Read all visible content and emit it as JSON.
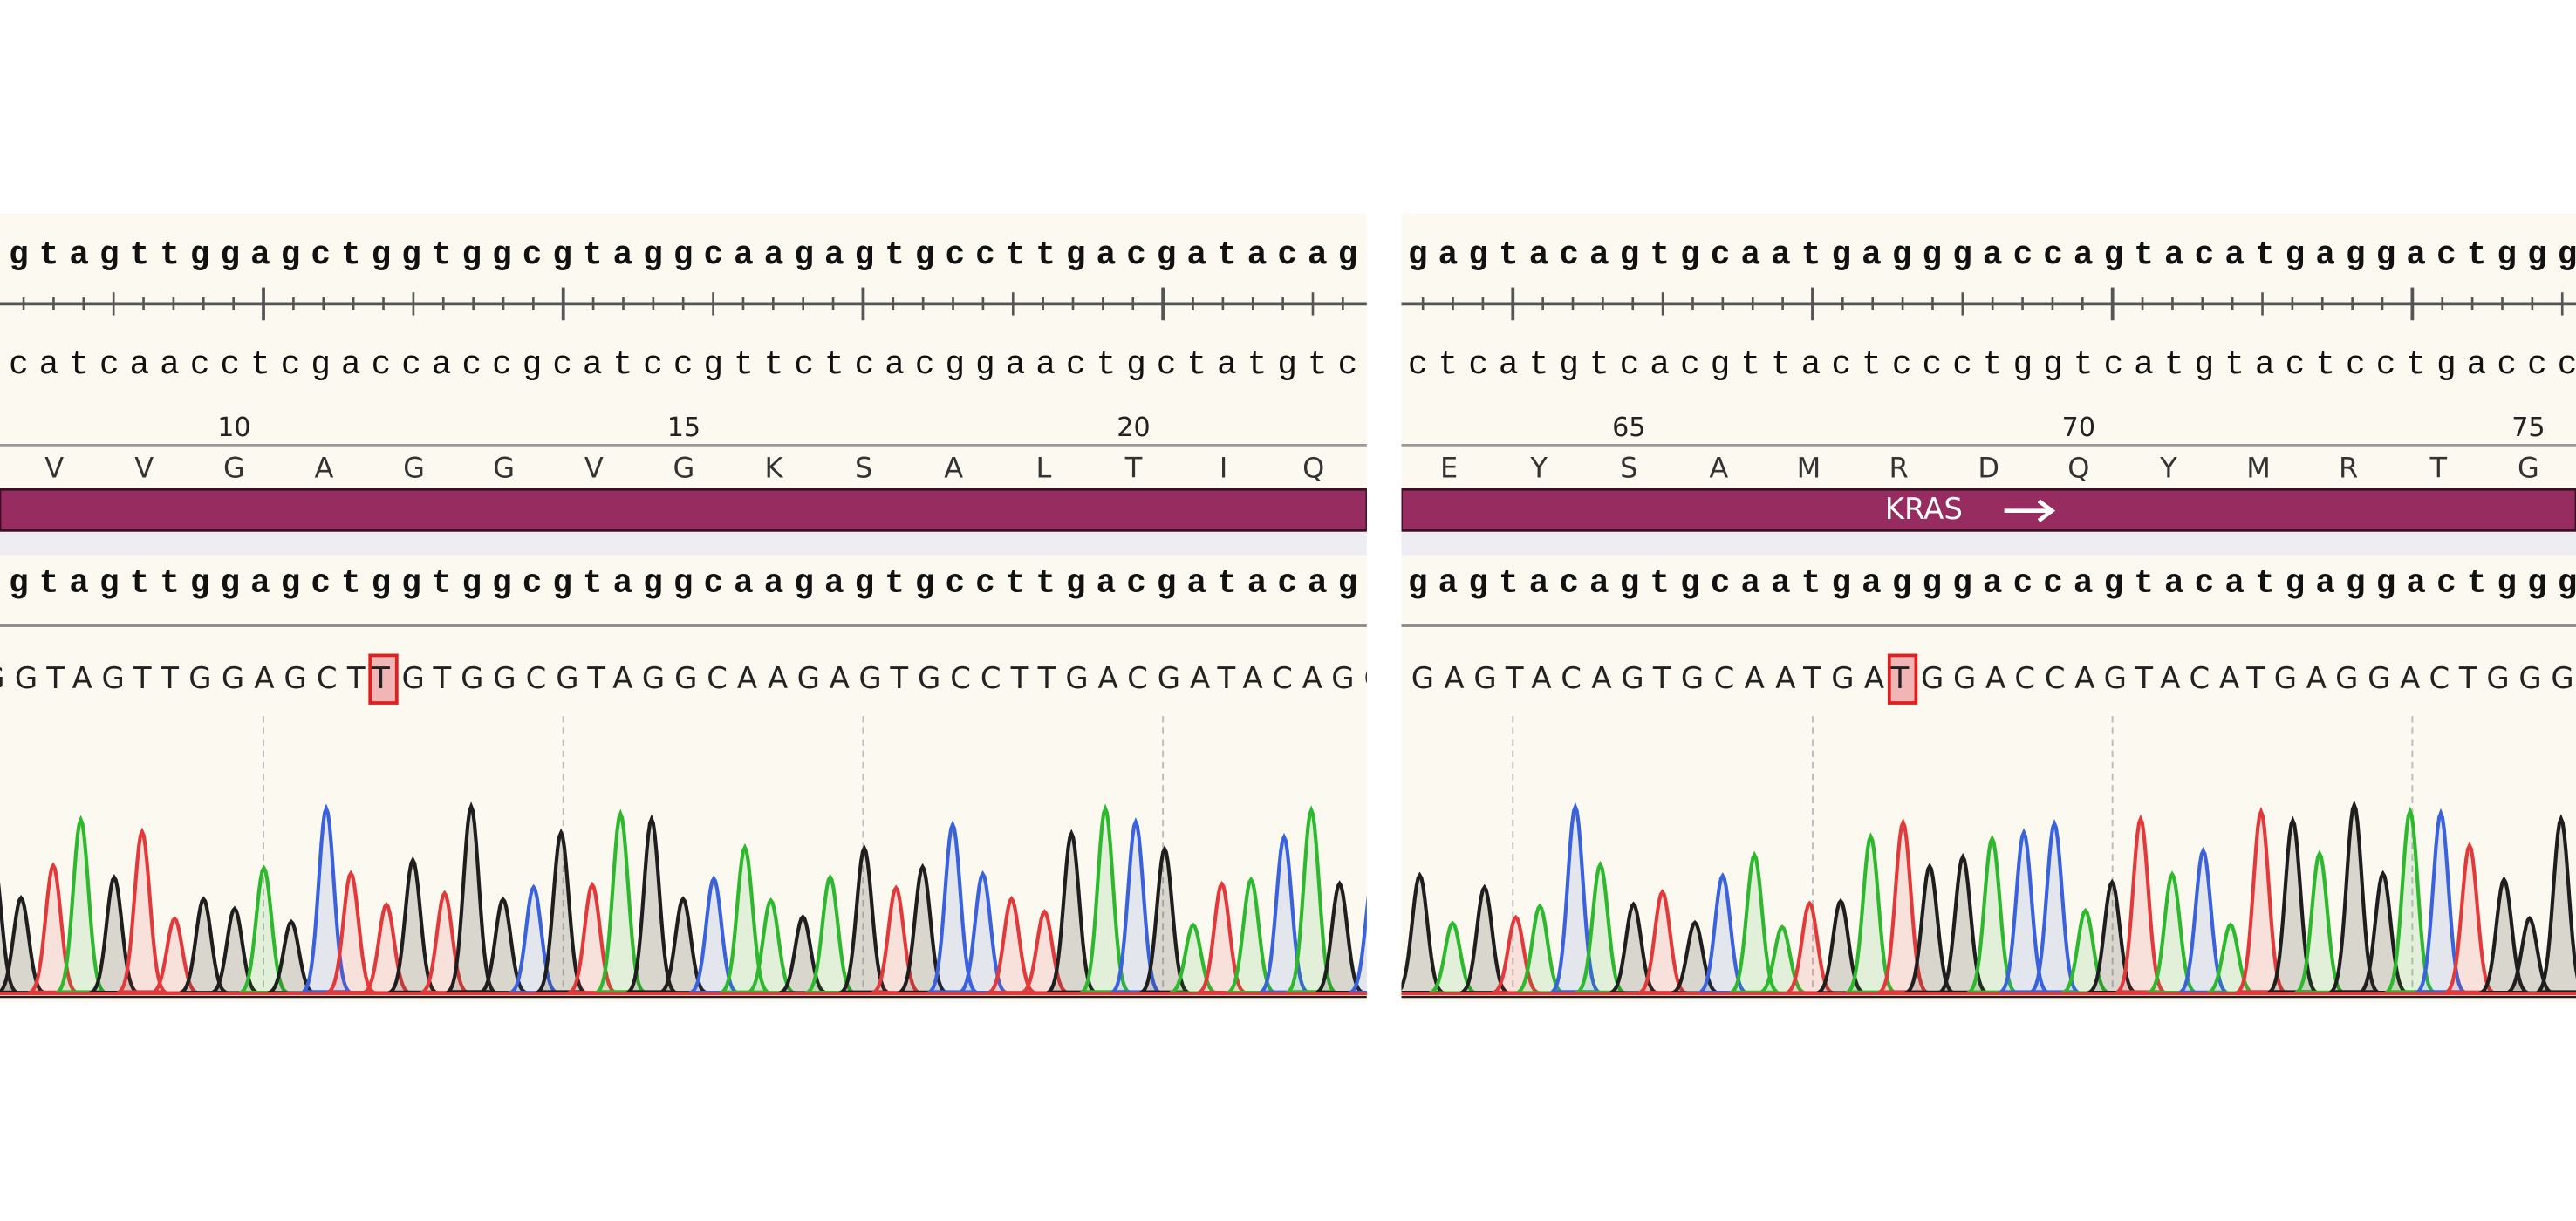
{
  "panels": [
    {
      "top_strand": "ggtagttggagctggtggcgtaggcaagagtgccttgacgatacagc",
      "bottom_strand": "ccatcaacctcgaccaccgcatccgttctcacggaactgctatgtcg",
      "positions": [
        10,
        15,
        20
      ],
      "amino_acids": [
        "V",
        "V",
        "G",
        "A",
        "G",
        "G",
        "V",
        "G",
        "K",
        "S",
        "A",
        "L",
        "T",
        "I",
        "Q"
      ],
      "read": {
        "before": "GGTAGTTGGAGCT",
        "variant": "T",
        "after": "GTGGCGTAGGCAAGAGTGCCTTGACGATACAGC"
      }
    },
    {
      "top_strand": "gagtacagtgcaatgagggaccagtacatgaggactggg",
      "bottom_strand": "ctcatgtcacgttactccctggtcatgtactcctgaccc",
      "positions": [
        65,
        70,
        75
      ],
      "amino_acids": [
        "E",
        "Y",
        "S",
        "A",
        "M",
        "R",
        "D",
        "Q",
        "Y",
        "M",
        "R",
        "T",
        "G"
      ],
      "feature": "KRAS",
      "read": {
        "before": "GAGTACAGTGCAATGA",
        "variant": "T",
        "after": "GGACCAGTACATGAGGACTGGG"
      }
    }
  ]
}
